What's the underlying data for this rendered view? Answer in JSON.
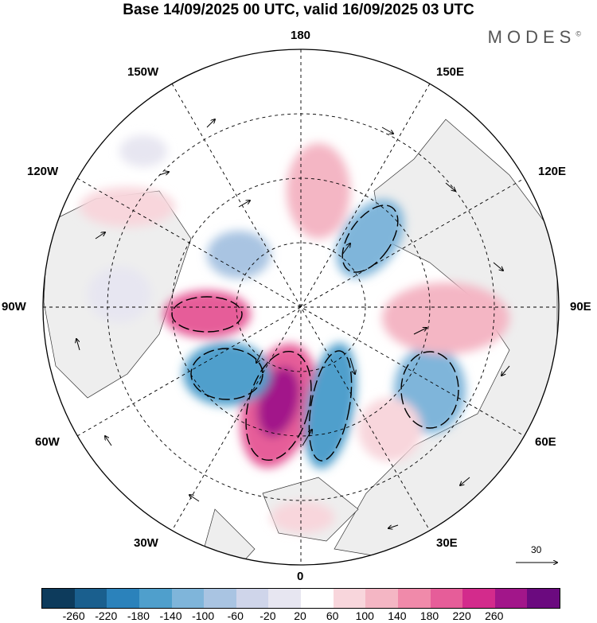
{
  "title": "Base 14/09/2025 00 UTC, valid 16/09/2025 03 UTC",
  "brand": "MODES",
  "brand_mark": "©",
  "longitude_labels": {
    "top": "180",
    "top_left": "150W",
    "top_right": "150E",
    "upper_left": "120W",
    "upper_right": "120E",
    "left": "90W",
    "right": "90E",
    "lower_left": "60W",
    "lower_right": "60E",
    "bottom_left": "30W",
    "bottom_right": "30E",
    "bottom": "0"
  },
  "reference_vector": "30",
  "colorbar": {
    "colors": [
      "#0d3b5c",
      "#1a5f8e",
      "#2b82bb",
      "#4f9fcc",
      "#7fb5da",
      "#a9c4e2",
      "#cfd5ea",
      "#e7e6f1",
      "#ffffff",
      "#f8d6dc",
      "#f4b6c4",
      "#f08aaa",
      "#e65d99",
      "#d32b8c",
      "#a2168a",
      "#6b0a7f"
    ],
    "ticks": [
      "-260",
      "-220",
      "-180",
      "-140",
      "-100",
      "-60",
      "-20",
      "20",
      "60",
      "100",
      "140",
      "180",
      "220",
      "260"
    ]
  }
}
